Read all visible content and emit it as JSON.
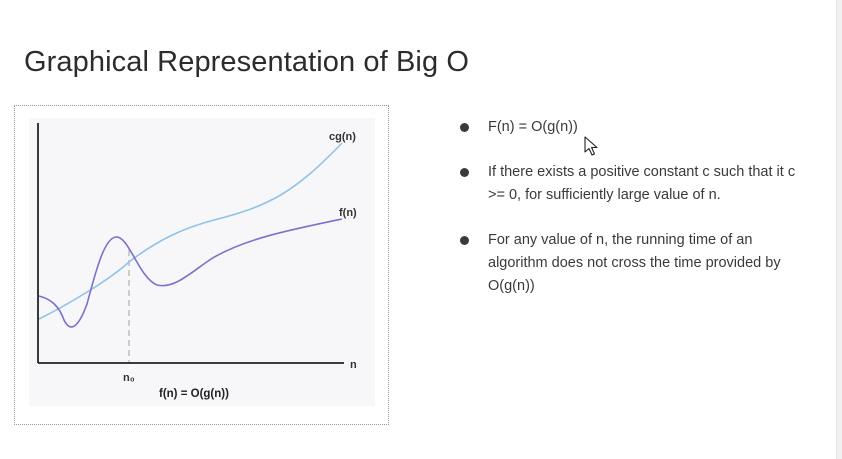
{
  "slide": {
    "title": "Graphical Representation of Big O"
  },
  "figure": {
    "label_cg": "cg(n)",
    "label_f": "f(n)",
    "label_n": "n",
    "label_n0": "n₀",
    "caption": "f(n) = O(g(n))",
    "colors": {
      "cg_curve": "#8fc3ea",
      "f_curve": "#7c70cc",
      "axis": "#222222",
      "dashed_line": "#b5b5b5"
    }
  },
  "bullets": [
    {
      "text": "F(n) = O(g(n))"
    },
    {
      "text": "If there exists a positive constant c such that it c >= 0, for sufficiently large value of n."
    },
    {
      "text": "For any value of n, the running time of an algorithm does not cross the time provided by O(g(n))"
    }
  ],
  "icons": {
    "bullet": "bullet-dot-icon",
    "cursor": "mouse-pointer-icon"
  }
}
